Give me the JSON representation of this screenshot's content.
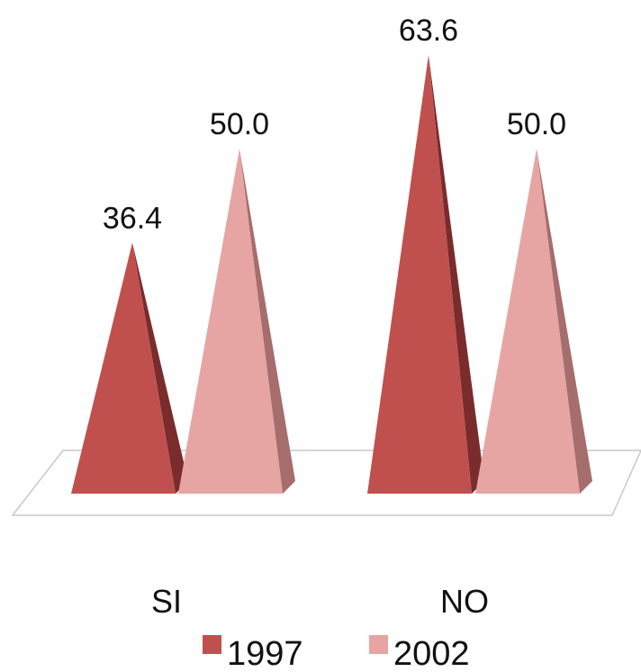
{
  "chart_data": {
    "type": "bar",
    "style": "3d-pyramid",
    "categories": [
      "SI",
      "NO"
    ],
    "series": [
      {
        "name": "1997",
        "values": [
          36.4,
          63.6
        ],
        "color": "#c0504d",
        "dark": "#7a2b2b"
      },
      {
        "name": "2002",
        "values": [
          50.0,
          50.0
        ],
        "color": "#e6a4a3",
        "dark": "#a56e6d"
      }
    ],
    "value_labels": [
      [
        "36.4",
        "63.6"
      ],
      [
        "50.0",
        "50.0"
      ]
    ],
    "ylim": [
      0,
      63.6
    ],
    "grid": false,
    "legend_position": "bottom"
  }
}
